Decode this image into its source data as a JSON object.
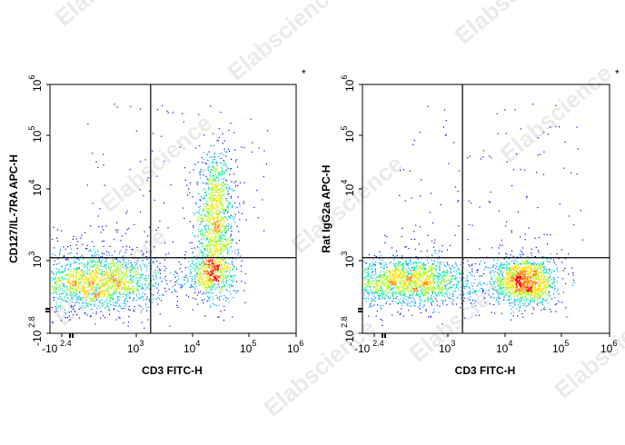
{
  "chart_data": [
    {
      "type": "scatter",
      "title": "",
      "xlabel": "CD3 FITC-H",
      "ylabel": "CD127/IL-7RA APC-H",
      "corner_mark": "*",
      "x_ticks": [
        {
          "base": "-10",
          "exp": "2.4",
          "value": -251
        },
        {
          "base": "10",
          "exp": "3",
          "value": 1000
        },
        {
          "base": "10",
          "exp": "4",
          "value": 10000
        },
        {
          "base": "10",
          "exp": "5",
          "value": 100000
        },
        {
          "base": "10",
          "exp": "6",
          "value": 1000000
        }
      ],
      "y_ticks": [
        {
          "base": "-10",
          "exp": "2.8",
          "value": -631
        },
        {
          "base": "10",
          "exp": "3",
          "value": 1000
        },
        {
          "base": "10",
          "exp": "4",
          "value": 10000
        },
        {
          "base": "10",
          "exp": "5",
          "value": 100000
        },
        {
          "base": "10",
          "exp": "6",
          "value": 1000000
        }
      ],
      "quadrant_gate": {
        "x": 1800,
        "y": 1100
      },
      "populations": [
        {
          "x": 150,
          "y": 300,
          "spread_x": 0.16,
          "spread_y": 0.1,
          "count": 1900
        },
        {
          "x": 25000,
          "y": 3000,
          "spread_x": 0.045,
          "spread_y": 0.14,
          "count": 1300
        },
        {
          "x": 20000,
          "y": 400,
          "spread_x": 0.06,
          "spread_y": 0.08,
          "count": 400
        }
      ]
    },
    {
      "type": "scatter",
      "title": "",
      "xlabel": "CD3 FITC-H",
      "ylabel": "Rat IgG2a APC-H",
      "corner_mark": "*",
      "x_ticks": [
        {
          "base": "-10",
          "exp": "2.4",
          "value": -251
        },
        {
          "base": "10",
          "exp": "3",
          "value": 1000
        },
        {
          "base": "10",
          "exp": "4",
          "value": 10000
        },
        {
          "base": "10",
          "exp": "5",
          "value": 100000
        },
        {
          "base": "10",
          "exp": "6",
          "value": 1000000
        }
      ],
      "y_ticks": [
        {
          "base": "-10",
          "exp": "2.8",
          "value": -631
        },
        {
          "base": "10",
          "exp": "3",
          "value": 1000
        },
        {
          "base": "10",
          "exp": "4",
          "value": 10000
        },
        {
          "base": "10",
          "exp": "5",
          "value": 100000
        },
        {
          "base": "10",
          "exp": "6",
          "value": 1000000
        }
      ],
      "quadrant_gate": {
        "x": 1800,
        "y": 1100
      },
      "populations": [
        {
          "x": 150,
          "y": 300,
          "spread_x": 0.16,
          "spread_y": 0.08,
          "count": 1900
        },
        {
          "x": 22000,
          "y": 300,
          "spread_x": 0.07,
          "spread_y": 0.08,
          "count": 1400
        }
      ]
    }
  ],
  "watermark": "Elabscience",
  "colors": {
    "axis": "#000000",
    "gate": "#000000",
    "density": [
      "#0000ff",
      "#00a0ff",
      "#00e6a0",
      "#a0ff00",
      "#ffe000",
      "#ff8000",
      "#ff0000"
    ]
  }
}
